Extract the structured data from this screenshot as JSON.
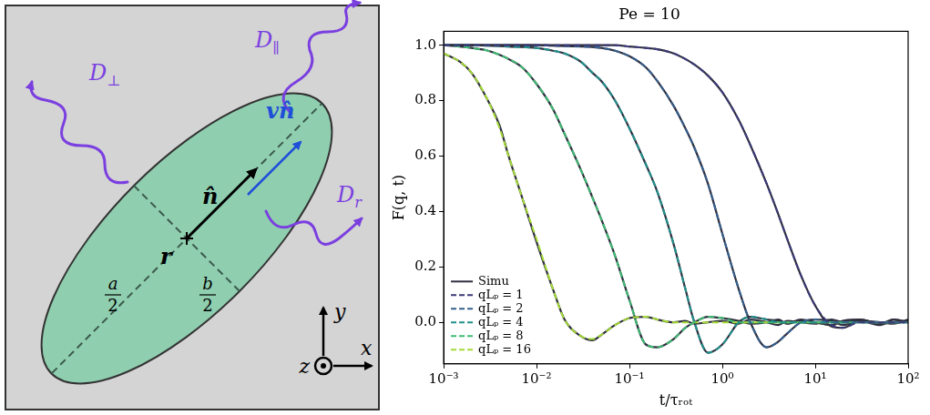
{
  "diagram": {
    "D_parallel": {
      "text": "D",
      "sub": "∥"
    },
    "D_perp": {
      "text": "D",
      "sub": "⊥"
    },
    "D_r": {
      "text": "D",
      "sub": "r"
    },
    "n_hat": {
      "text": "n̂"
    },
    "v_n_hat": {
      "text": "vn̂"
    },
    "r": {
      "text": "r"
    },
    "a_half": {
      "numerator": "a",
      "denominator": "2"
    },
    "b_half": {
      "numerator": "b",
      "denominator": "2"
    },
    "x_axis": {
      "text": "x"
    },
    "y_axis": {
      "text": "y"
    },
    "z_axis": {
      "text": "z"
    }
  },
  "chart_data": {
    "type": "line",
    "title": "Pe = 10",
    "x_label": "t/τᵣₒₜ",
    "y_label": "F(q, t)",
    "log": "x",
    "grid": false,
    "legend": "lower left",
    "x": [
      0.001,
      0.0015,
      0.002,
      0.003,
      0.004,
      0.005,
      0.007,
      0.01,
      0.015,
      0.02,
      0.03,
      0.04,
      0.05,
      0.07,
      0.1,
      0.15,
      0.2,
      0.3,
      0.4,
      0.5,
      0.7,
      1,
      1.5,
      2,
      3,
      4,
      5,
      7,
      10,
      15,
      20,
      30,
      50,
      70,
      100
    ],
    "xlim": [
      0.001,
      100
    ],
    "ylim": [
      -0.15,
      1.05
    ],
    "xticks": [
      {
        "value": 0.001,
        "label": "10⁻³"
      },
      {
        "value": 0.01,
        "label": "10⁻²"
      },
      {
        "value": 0.1,
        "label": "10⁻¹"
      },
      {
        "value": 1,
        "label": "10⁰"
      },
      {
        "value": 10,
        "label": "10¹"
      },
      {
        "value": 100,
        "label": "10²"
      }
    ],
    "yticks": [
      {
        "value": 0,
        "label": "0.0"
      },
      0.2,
      0.4,
      0.6,
      0.8,
      {
        "value": 1,
        "label": "1.0"
      }
    ],
    "series": [
      {
        "name": "Simu",
        "color": "#2f2f3f",
        "line_style": "solid",
        "values": [
          1,
          1,
          1,
          1,
          1,
          1,
          1,
          1,
          1,
          1,
          1,
          1,
          1,
          1,
          0.995,
          0.99,
          0.985,
          0.97,
          0.95,
          0.93,
          0.89,
          0.83,
          0.73,
          0.64,
          0.5,
          0.39,
          0.3,
          0.17,
          0.06,
          -0.015,
          -0.02,
          0.005,
          -0.005,
          0.01,
          0
        ]
      },
      {
        "name": "Simu",
        "color": "#2f2f3f",
        "line_style": "solid",
        "values": [
          1,
          1,
          1,
          1,
          1,
          1,
          1,
          1,
          0.998,
          0.997,
          0.995,
          0.993,
          0.99,
          0.98,
          0.96,
          0.92,
          0.87,
          0.78,
          0.7,
          0.63,
          0.5,
          0.32,
          0.12,
          0,
          -0.09,
          -0.07,
          -0.04,
          0,
          0.01,
          0.005,
          -0.01,
          0.005,
          0,
          -0.005,
          0.01
        ]
      },
      {
        "name": "Simu",
        "color": "#2f2f3f",
        "line_style": "solid",
        "values": [
          1,
          1,
          1,
          0.998,
          0.997,
          0.995,
          0.993,
          0.99,
          0.98,
          0.97,
          0.94,
          0.9,
          0.87,
          0.8,
          0.7,
          0.57,
          0.47,
          0.28,
          0.12,
          0,
          -0.11,
          -0.08,
          0,
          0.02,
          0.01,
          0.005,
          -0.005,
          0.01,
          0,
          -0.01,
          0.005,
          0.01,
          -0.005,
          0,
          0.005
        ]
      },
      {
        "name": "Simu",
        "color": "#2f2f3f",
        "line_style": "solid",
        "values": [
          1,
          0.995,
          0.99,
          0.98,
          0.965,
          0.95,
          0.92,
          0.86,
          0.77,
          0.68,
          0.55,
          0.45,
          0.37,
          0.24,
          0.08,
          -0.08,
          -0.09,
          -0.06,
          -0.02,
          0,
          0.02,
          0.015,
          0.005,
          -0.005,
          0,
          0.01,
          -0.005,
          0.005,
          0,
          -0.01,
          0.005,
          0.01,
          -0.005,
          0,
          0.005
        ]
      },
      {
        "name": "Simu",
        "color": "#2f2f3f",
        "line_style": "solid",
        "values": [
          0.97,
          0.94,
          0.9,
          0.8,
          0.71,
          0.6,
          0.45,
          0.29,
          0.12,
          0.01,
          -0.05,
          -0.065,
          -0.045,
          -0.01,
          0.015,
          0.02,
          0.01,
          0,
          0.005,
          -0.005,
          0,
          0.005,
          -0.005,
          0.01,
          0,
          -0.01,
          0.005,
          0,
          -0.005,
          0.01,
          0,
          0.005,
          -0.01,
          0.01,
          0
        ]
      },
      {
        "name": "qLₚ = 1",
        "color": "#3c3a78",
        "line_style": "dashed",
        "values": [
          1,
          1,
          1,
          1,
          1,
          1,
          1,
          1,
          1,
          1,
          1,
          1,
          1,
          1,
          0.995,
          0.99,
          0.985,
          0.97,
          0.95,
          0.93,
          0.89,
          0.83,
          0.73,
          0.64,
          0.5,
          0.39,
          0.3,
          0.17,
          0.06,
          -0.01,
          -0.02,
          0,
          0,
          0,
          0
        ]
      },
      {
        "name": "qLₚ = 2",
        "color": "#35608d",
        "line_style": "dashed",
        "values": [
          1,
          1,
          1,
          1,
          1,
          1,
          1,
          1,
          0.998,
          0.997,
          0.995,
          0.993,
          0.99,
          0.98,
          0.96,
          0.92,
          0.87,
          0.78,
          0.7,
          0.63,
          0.5,
          0.32,
          0.12,
          0,
          -0.09,
          -0.07,
          -0.04,
          0,
          0.01,
          0,
          0,
          0,
          0,
          0,
          0
        ]
      },
      {
        "name": "qLₚ = 4",
        "color": "#21918c",
        "line_style": "dashed",
        "values": [
          1,
          1,
          1,
          0.998,
          0.997,
          0.995,
          0.993,
          0.99,
          0.98,
          0.97,
          0.94,
          0.9,
          0.87,
          0.8,
          0.7,
          0.57,
          0.47,
          0.28,
          0.12,
          0,
          -0.11,
          -0.08,
          0,
          0.02,
          0.01,
          0,
          0,
          0,
          0,
          0,
          0,
          0,
          0,
          0,
          0
        ]
      },
      {
        "name": "qLₚ = 8",
        "color": "#3fbc73",
        "line_style": "dashed",
        "values": [
          1,
          0.995,
          0.99,
          0.98,
          0.965,
          0.95,
          0.92,
          0.86,
          0.77,
          0.68,
          0.55,
          0.45,
          0.37,
          0.24,
          0.08,
          -0.08,
          -0.09,
          -0.06,
          -0.02,
          0,
          0.02,
          0.015,
          0,
          0,
          0,
          0,
          0,
          0,
          0,
          0,
          0,
          0,
          0,
          0,
          0
        ]
      },
      {
        "name": "qLₚ = 16",
        "color": "#a5db36",
        "line_style": "dashed",
        "values": [
          0.97,
          0.94,
          0.9,
          0.8,
          0.7,
          0.6,
          0.45,
          0.3,
          0.12,
          0.01,
          -0.05,
          -0.06,
          -0.045,
          -0.01,
          0.015,
          0.02,
          0.01,
          0,
          0,
          0,
          0,
          0,
          0,
          0,
          0,
          0,
          0,
          0,
          0,
          0,
          0,
          0,
          0,
          0,
          0
        ]
      }
    ]
  }
}
